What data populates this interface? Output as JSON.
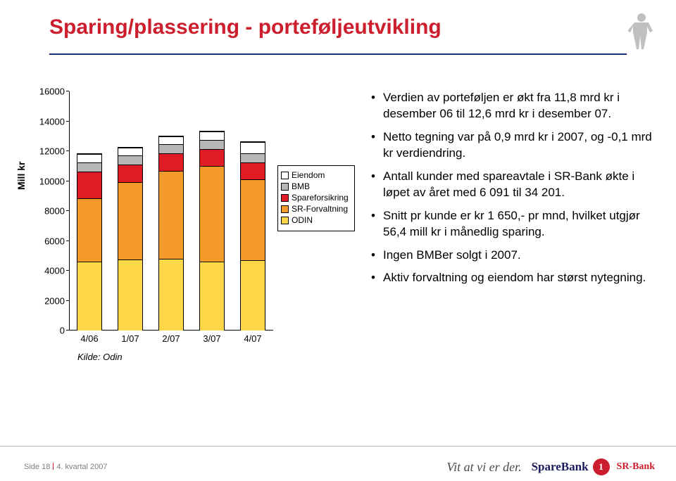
{
  "title": {
    "text": "Sparing/plassering - porteføljeutvikling",
    "color": "#cc1e2c",
    "fontsize": 30
  },
  "rule_color": "#1a2f78",
  "person_icon_color": "#c2bfc1",
  "chart": {
    "type": "stacked-bar",
    "ylabel": "Mill kr",
    "label_fontsize": 14,
    "ylim": [
      0,
      16000
    ],
    "ytick_step": 2000,
    "yticks": [
      "0",
      "2000",
      "4000",
      "6000",
      "8000",
      "10000",
      "12000",
      "14000",
      "16000"
    ],
    "categories": [
      "4/06",
      "1/07",
      "2/07",
      "3/07",
      "4/07"
    ],
    "series": [
      {
        "key": "odin",
        "label": "ODIN",
        "color": "#ffd84a"
      },
      {
        "key": "srf",
        "label": "SR-Forvaltning",
        "color": "#f39a2b"
      },
      {
        "key": "spare",
        "label": "Spareforsikring",
        "color": "#e11b23"
      },
      {
        "key": "bmb",
        "label": "BMB",
        "color": "#b7b7b7"
      },
      {
        "key": "eiendom",
        "label": "Eiendom",
        "color": "#ffffff"
      }
    ],
    "values": {
      "odin": [
        4600,
        4750,
        4800,
        4600,
        4700
      ],
      "srf": [
        4250,
        5200,
        5900,
        6400,
        5400
      ],
      "spare": [
        1800,
        1150,
        1150,
        1150,
        1150
      ],
      "bmb": [
        600,
        600,
        600,
        600,
        600
      ],
      "eiendom": [
        550,
        550,
        550,
        550,
        750
      ]
    },
    "bar_width": 0.62,
    "background_color": "#ffffff",
    "axis_color": "#000000",
    "tick_fontsize": 13,
    "source_label": "Kilde: Odin"
  },
  "legend_order": [
    "eiendom",
    "bmb",
    "spare",
    "srf",
    "odin"
  ],
  "bullets": [
    "Verdien av porteføljen er økt fra 11,8 mrd kr i desember 06 til 12,6 mrd kr i desember 07.",
    "Netto tegning var på 0,9 mrd kr i 2007, og -0,1 mrd kr verdiendring.",
    "Antall kunder med spareavtale i SR-Bank økte i løpet av året med 6 091 til 34 201.",
    "Snitt pr kunde er kr 1 650,- pr mnd, hvilket utgjør 56,4 mill kr i månedlig sparing.",
    "Ingen BMBer solgt i 2007.",
    "Aktiv forvaltning og eiendom har størst nytegning."
  ],
  "footer": {
    "page": "Side 18",
    "period": "4. kvartal 2007",
    "tagline": "Vit at vi er der.",
    "brand_name": "SpareBank",
    "brand_sub": "SR-Bank",
    "brand_logo_text": "1",
    "brand_logo_bg": "#cc1e2c",
    "brand_name_color": "#1a1a5c",
    "brand_sub_color": "#cc1e2c"
  }
}
